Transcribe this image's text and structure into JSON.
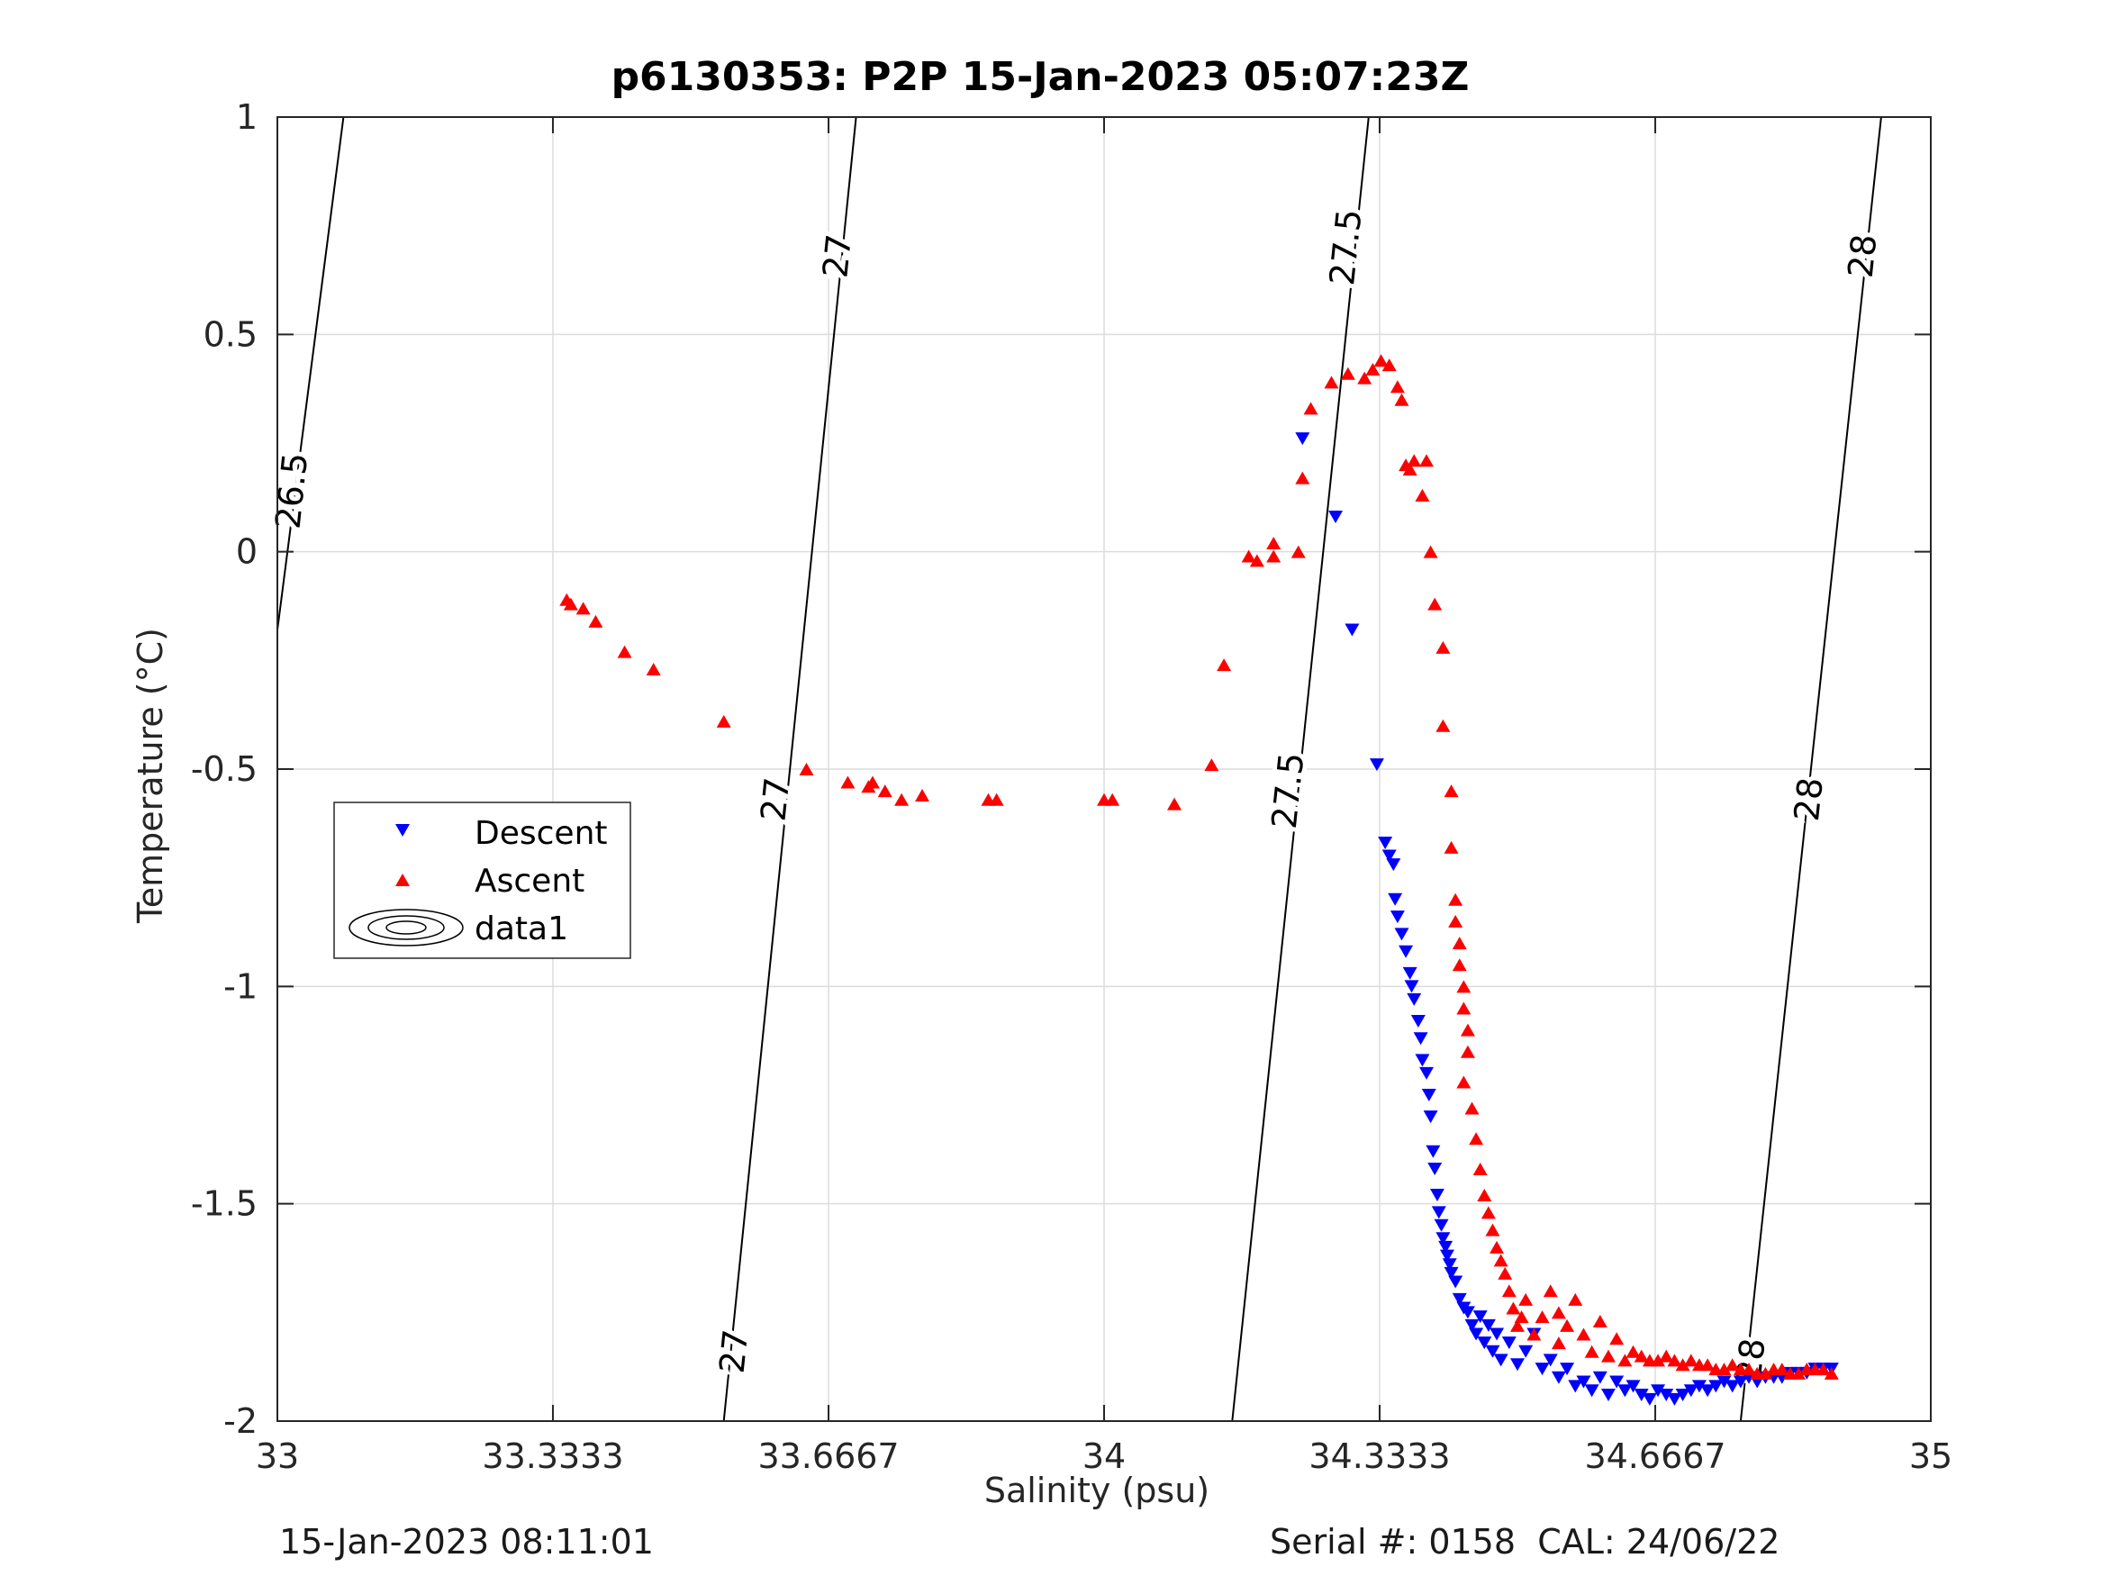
{
  "chart_data": {
    "type": "scatter",
    "title": "p6130353: P2P 15-Jan-2023 05:07:23Z",
    "xlabel": "Salinity (psu)",
    "ylabel": "Temperature (°C)",
    "xlim": [
      33,
      35
    ],
    "ylim": [
      -2,
      1
    ],
    "x_ticks": [
      33,
      33.3333,
      33.6667,
      34,
      34.3333,
      34.6667,
      35
    ],
    "x_tick_labels": [
      "33",
      "33.3333",
      "33.6667",
      "34",
      "34.3333",
      "34.6667",
      "35"
    ],
    "y_ticks": [
      -2,
      -1.5,
      -1,
      -0.5,
      0,
      0.5,
      1
    ],
    "y_tick_labels": [
      "-2",
      "-1.5",
      "-1",
      "-0.5",
      "0",
      "0.5",
      "1"
    ],
    "grid": true,
    "legend_position": "left-middle",
    "series": [
      {
        "name": "Descent",
        "marker": "down-triangle",
        "color": "#0000ff",
        "x": [
          34.24,
          34.28,
          34.3,
          34.33,
          34.34,
          34.345,
          34.35,
          34.352,
          34.355,
          34.36,
          34.365,
          34.37,
          34.372,
          34.375,
          34.38,
          34.383,
          34.385,
          34.39,
          34.393,
          34.395,
          34.398,
          34.4,
          34.403,
          34.405,
          34.408,
          34.41,
          34.413,
          34.415,
          34.418,
          34.42,
          34.425,
          34.43,
          34.435,
          34.44,
          34.445,
          34.45,
          34.455,
          34.46,
          34.465,
          34.47,
          34.475,
          34.48,
          34.49,
          34.5,
          34.51,
          34.52,
          34.53,
          34.54,
          34.55,
          34.56,
          34.57,
          34.58,
          34.59,
          34.6,
          34.61,
          34.62,
          34.63,
          34.64,
          34.65,
          34.66,
          34.67,
          34.68,
          34.69,
          34.7,
          34.71,
          34.72,
          34.73,
          34.74,
          34.75,
          34.76,
          34.77,
          34.78,
          34.79,
          34.8,
          34.81,
          34.82,
          34.83,
          34.84,
          34.85,
          34.86,
          34.87,
          34.88
        ],
        "y": [
          0.26,
          0.08,
          -0.18,
          -0.49,
          -0.67,
          -0.7,
          -0.72,
          -0.8,
          -0.84,
          -0.88,
          -0.92,
          -0.97,
          -1.0,
          -1.03,
          -1.08,
          -1.12,
          -1.17,
          -1.2,
          -1.25,
          -1.3,
          -1.38,
          -1.42,
          -1.48,
          -1.52,
          -1.55,
          -1.58,
          -1.6,
          -1.62,
          -1.64,
          -1.66,
          -1.68,
          -1.72,
          -1.74,
          -1.75,
          -1.78,
          -1.8,
          -1.76,
          -1.82,
          -1.78,
          -1.84,
          -1.8,
          -1.86,
          -1.82,
          -1.87,
          -1.84,
          -1.8,
          -1.88,
          -1.86,
          -1.9,
          -1.88,
          -1.92,
          -1.91,
          -1.93,
          -1.9,
          -1.94,
          -1.91,
          -1.93,
          -1.92,
          -1.94,
          -1.95,
          -1.93,
          -1.94,
          -1.95,
          -1.94,
          -1.93,
          -1.92,
          -1.93,
          -1.92,
          -1.91,
          -1.92,
          -1.91,
          -1.9,
          -1.91,
          -1.9,
          -1.9,
          -1.9,
          -1.89,
          -1.89,
          -1.89,
          -1.88,
          -1.88,
          -1.88
        ]
      },
      {
        "name": "Ascent",
        "marker": "up-triangle",
        "color": "#ff0000",
        "x": [
          33.35,
          33.355,
          33.37,
          33.385,
          33.42,
          33.455,
          33.54,
          33.64,
          33.69,
          33.715,
          33.72,
          33.735,
          33.755,
          33.78,
          33.86,
          33.87,
          34.0,
          34.01,
          34.085,
          34.13,
          34.145,
          34.175,
          34.185,
          34.205,
          34.205,
          34.235,
          34.24,
          34.25,
          34.275,
          34.295,
          34.315,
          34.325,
          34.335,
          34.345,
          34.355,
          34.36,
          34.365,
          34.37,
          34.375,
          34.385,
          34.39,
          34.395,
          34.4,
          34.41,
          34.41,
          34.42,
          34.42,
          34.425,
          34.425,
          34.43,
          34.43,
          34.435,
          34.435,
          34.44,
          34.44,
          34.435,
          34.445,
          34.45,
          34.455,
          34.46,
          34.465,
          34.47,
          34.475,
          34.48,
          34.485,
          34.49,
          34.495,
          34.5,
          34.505,
          34.51,
          34.52,
          34.53,
          34.54,
          34.55,
          34.55,
          34.56,
          34.57,
          34.58,
          34.59,
          34.6,
          34.61,
          34.62,
          34.63,
          34.64,
          34.65,
          34.66,
          34.67,
          34.68,
          34.69,
          34.7,
          34.71,
          34.72,
          34.73,
          34.74,
          34.75,
          34.76,
          34.77,
          34.78,
          34.79,
          34.8,
          34.81,
          34.82,
          34.83,
          34.84,
          34.85,
          34.86,
          34.87,
          34.88
        ],
        "y": [
          -0.11,
          -0.12,
          -0.13,
          -0.16,
          -0.23,
          -0.27,
          -0.39,
          -0.5,
          -0.53,
          -0.54,
          -0.53,
          -0.55,
          -0.57,
          -0.56,
          -0.57,
          -0.57,
          -0.57,
          -0.57,
          -0.58,
          -0.49,
          -0.26,
          -0.01,
          -0.02,
          -0.01,
          0.02,
          0.0,
          0.17,
          0.33,
          0.39,
          0.41,
          0.4,
          0.42,
          0.44,
          0.43,
          0.38,
          0.35,
          0.2,
          0.19,
          0.21,
          0.13,
          0.21,
          0.0,
          -0.12,
          -0.22,
          -0.4,
          -0.55,
          -0.68,
          -0.8,
          -0.85,
          -0.9,
          -0.95,
          -1.0,
          -1.05,
          -1.1,
          -1.15,
          -1.22,
          -1.28,
          -1.35,
          -1.42,
          -1.48,
          -1.52,
          -1.56,
          -1.6,
          -1.63,
          -1.66,
          -1.7,
          -1.74,
          -1.78,
          -1.76,
          -1.72,
          -1.8,
          -1.76,
          -1.7,
          -1.75,
          -1.82,
          -1.78,
          -1.72,
          -1.8,
          -1.84,
          -1.77,
          -1.85,
          -1.81,
          -1.86,
          -1.84,
          -1.85,
          -1.86,
          -1.86,
          -1.85,
          -1.86,
          -1.87,
          -1.86,
          -1.87,
          -1.87,
          -1.88,
          -1.88,
          -1.87,
          -1.88,
          -1.88,
          -1.89,
          -1.89,
          -1.88,
          -1.88,
          -1.89,
          -1.89,
          -1.88,
          -1.88,
          -1.88,
          -1.89
        ]
      },
      {
        "name": "data1",
        "marker": "contour",
        "color": "#000000"
      }
    ],
    "contours": [
      {
        "label": "26.5",
        "points": [
          [
            33.0,
            -0.18
          ],
          [
            33.08,
            1.0
          ]
        ]
      },
      {
        "label": "27",
        "points": [
          [
            33.54,
            -2.0
          ],
          [
            33.7,
            1.0
          ]
        ]
      },
      {
        "label": "27.5",
        "points": [
          [
            34.155,
            -2.0
          ],
          [
            34.32,
            1.0
          ]
        ]
      },
      {
        "label": "28",
        "points": [
          [
            34.77,
            -2.0
          ],
          [
            34.94,
            1.0
          ]
        ]
      }
    ],
    "contour_labels": [
      {
        "text": "26.5",
        "at": [
          33.02,
          0.14
        ]
      },
      {
        "text": "27",
        "at": [
          33.68,
          0.68
        ]
      },
      {
        "text": "27",
        "at": [
          33.605,
          -0.57
        ]
      },
      {
        "text": "27",
        "at": [
          33.555,
          -1.84
        ]
      },
      {
        "text": "27.5",
        "at": [
          34.295,
          0.7
        ]
      },
      {
        "text": "27.5",
        "at": [
          34.225,
          -0.55
        ]
      },
      {
        "text": "28",
        "at": [
          34.92,
          0.68
        ]
      },
      {
        "text": "28",
        "at": [
          34.855,
          -0.57
        ]
      },
      {
        "text": "28",
        "at": [
          34.785,
          -1.86
        ]
      }
    ]
  },
  "footer": {
    "date": "15-Jan-2023 08:11:01",
    "serial": "Serial #: 0158  CAL: 24/06/22"
  }
}
